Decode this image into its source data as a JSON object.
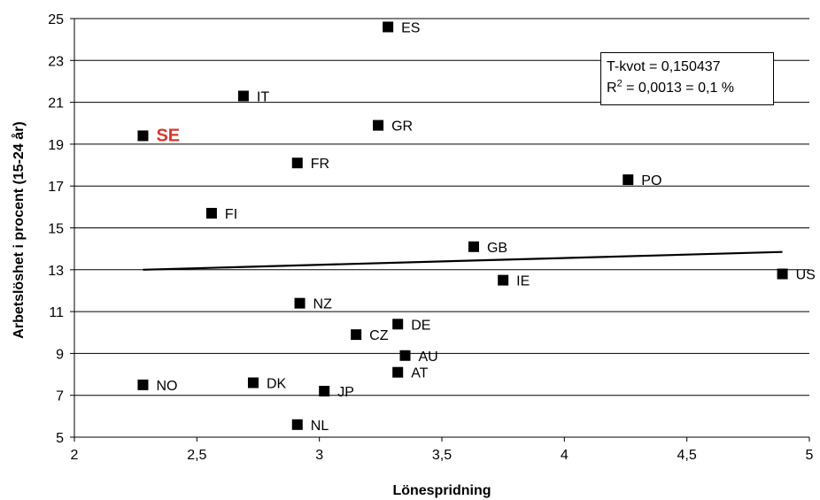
{
  "chart_data": {
    "type": "scatter",
    "title": "",
    "xlabel": "Lönespridning",
    "ylabel": "Arbetslöshet i procent (15-24 år)",
    "xlim": [
      2,
      5
    ],
    "ylim": [
      5,
      25
    ],
    "xticks": [
      2,
      2.5,
      3,
      3.5,
      4,
      4.5,
      5
    ],
    "xtick_labels": [
      "2",
      "2,5",
      "3",
      "3,5",
      "4",
      "4,5",
      "5"
    ],
    "yticks": [
      5,
      7,
      9,
      11,
      13,
      15,
      17,
      19,
      21,
      23,
      25
    ],
    "ytick_labels": [
      "5",
      "7",
      "9",
      "11",
      "13",
      "15",
      "17",
      "19",
      "21",
      "23",
      "25"
    ],
    "grid": "horizontal",
    "points": [
      {
        "label": "ES",
        "x": 3.28,
        "y": 24.6
      },
      {
        "label": "IT",
        "x": 2.69,
        "y": 21.3
      },
      {
        "label": "SE",
        "x": 2.28,
        "y": 19.4,
        "highlight": true
      },
      {
        "label": "GR",
        "x": 3.24,
        "y": 19.9
      },
      {
        "label": "FR",
        "x": 2.91,
        "y": 18.1
      },
      {
        "label": "PO",
        "x": 4.26,
        "y": 17.3
      },
      {
        "label": "FI",
        "x": 2.56,
        "y": 15.7
      },
      {
        "label": "GB",
        "x": 3.63,
        "y": 14.1
      },
      {
        "label": "IE",
        "x": 3.75,
        "y": 12.5
      },
      {
        "label": "US",
        "x": 4.89,
        "y": 12.8
      },
      {
        "label": "NZ",
        "x": 2.92,
        "y": 11.4
      },
      {
        "label": "DE",
        "x": 3.32,
        "y": 10.4
      },
      {
        "label": "CZ",
        "x": 3.15,
        "y": 9.9
      },
      {
        "label": "AU",
        "x": 3.35,
        "y": 8.9
      },
      {
        "label": "AT",
        "x": 3.32,
        "y": 8.1
      },
      {
        "label": "NO",
        "x": 2.28,
        "y": 7.5
      },
      {
        "label": "DK",
        "x": 2.73,
        "y": 7.6
      },
      {
        "label": "JP",
        "x": 3.02,
        "y": 7.2
      },
      {
        "label": "NL",
        "x": 2.91,
        "y": 5.6
      }
    ],
    "trendline": {
      "x": [
        2.28,
        4.89
      ],
      "y": [
        13.0,
        13.85
      ]
    },
    "annotation": {
      "line1": "T-kvot = 0,150437",
      "r2_prefix": "R",
      "r2_sup": "2",
      "r2_rest": " = 0,0013 = 0,1 %"
    }
  },
  "colors": {
    "marker": "#000000",
    "highlight": "#d6382a",
    "grid": "#000000"
  }
}
